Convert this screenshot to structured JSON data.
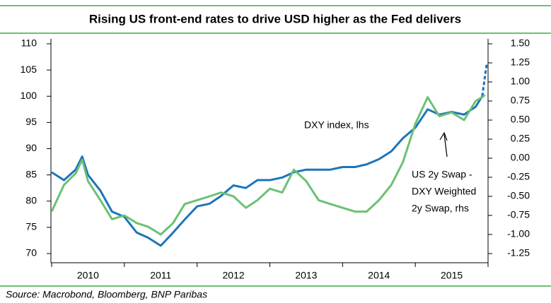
{
  "chart_data": {
    "type": "line",
    "title": "Rising US front-end rates to drive USD higher as the Fed delivers",
    "source": "Source: Macrobond, Bloomberg, BNP Paribas",
    "xlim": [
      2010,
      2016
    ],
    "xticks": [
      {
        "value": 2010,
        "label": "2010"
      },
      {
        "value": 2011,
        "label": "2011"
      },
      {
        "value": 2012,
        "label": "2012"
      },
      {
        "value": 2013,
        "label": "2013"
      },
      {
        "value": 2014,
        "label": "2014"
      },
      {
        "value": 2015,
        "label": "2015"
      }
    ],
    "ylim": [
      70,
      110
    ],
    "yticks": [
      70,
      75,
      80,
      85,
      90,
      95,
      100,
      105,
      110
    ],
    "y2lim": [
      -1.25,
      1.5
    ],
    "y2ticks": [
      {
        "value": -1.25,
        "label": "-1.25"
      },
      {
        "value": -1,
        "label": "-1.00"
      },
      {
        "value": -0.75,
        "label": "-0.75"
      },
      {
        "value": -0.5,
        "label": "-0.50"
      },
      {
        "value": -0.25,
        "label": "-0.25"
      },
      {
        "value": 0,
        "label": "0.00"
      },
      {
        "value": 0.25,
        "label": "0.25"
      },
      {
        "value": 0.5,
        "label": "0.50"
      },
      {
        "value": 0.75,
        "label": "0.75"
      },
      {
        "value": 1,
        "label": "1.00"
      },
      {
        "value": 1.25,
        "label": "1.25"
      },
      {
        "value": 1.5,
        "label": "1.50"
      }
    ],
    "x": [
      2010.0,
      2010.17,
      2010.33,
      2010.42,
      2010.5,
      2010.67,
      2010.83,
      2011.0,
      2011.17,
      2011.33,
      2011.5,
      2011.67,
      2011.83,
      2012.0,
      2012.17,
      2012.33,
      2012.5,
      2012.67,
      2012.83,
      2013.0,
      2013.17,
      2013.33,
      2013.5,
      2013.67,
      2013.83,
      2014.0,
      2014.17,
      2014.33,
      2014.5,
      2014.67,
      2014.83,
      2015.0,
      2015.17,
      2015.33,
      2015.5,
      2015.67,
      2015.83,
      2015.92
    ],
    "series": [
      {
        "name": "DXY index, lhs",
        "color": "#1b75bc",
        "axis": "y",
        "values": [
          85.5,
          84,
          86,
          88.5,
          85,
          82,
          78,
          77,
          74,
          73,
          71.5,
          74,
          76.5,
          79,
          79.5,
          81,
          83,
          82.5,
          84,
          84,
          84.5,
          85.5,
          86,
          86,
          86,
          86.5,
          86.5,
          87,
          88,
          89.5,
          92,
          94,
          97.5,
          96.5,
          97,
          96.5,
          98,
          100
        ],
        "forecast": {
          "x": [
            2015.92,
            2015.98
          ],
          "values": [
            100,
            106
          ]
        }
      },
      {
        "name": [
          "US 2y Swap -",
          "DXY Weighted",
          "2y Swap, rhs"
        ],
        "color": "#6cc074",
        "axis": "y2",
        "values": [
          -0.7,
          -0.35,
          -0.2,
          -0.02,
          -0.3,
          -0.55,
          -0.8,
          -0.75,
          -0.85,
          -0.9,
          -1.0,
          -0.85,
          -0.6,
          -0.55,
          -0.5,
          -0.45,
          -0.5,
          -0.65,
          -0.55,
          -0.4,
          -0.45,
          -0.15,
          -0.3,
          -0.55,
          -0.6,
          -0.65,
          -0.7,
          -0.7,
          -0.55,
          -0.35,
          -0.05,
          0.45,
          0.8,
          0.55,
          0.6,
          0.5,
          0.75,
          0.8
        ],
        "forecast": {
          "x": [
            2015.92,
            2015.98
          ],
          "values": [
            0.8,
            0.85
          ]
        }
      }
    ]
  }
}
